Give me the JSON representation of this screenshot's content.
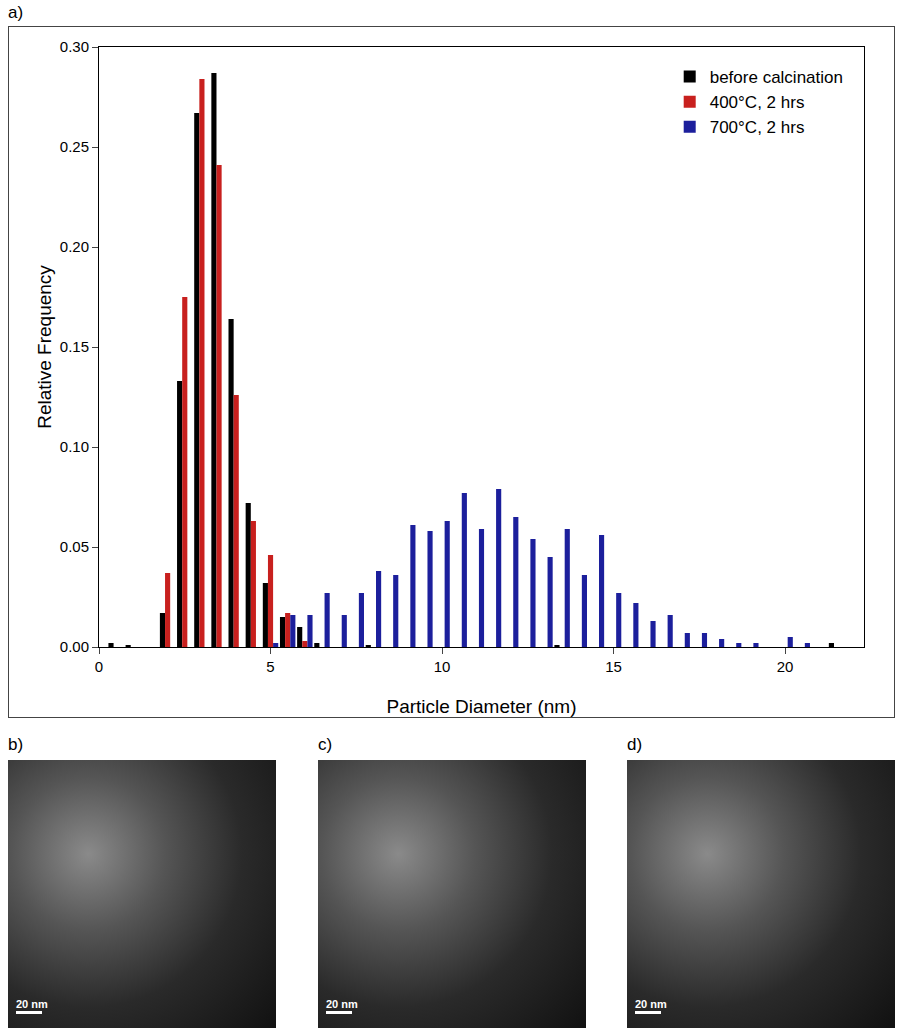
{
  "chart_data": {
    "type": "histogram",
    "x_label": "Particle Diameter (nm)",
    "y_label": "Relative Frequency",
    "bins": [
      0.25,
      0.75,
      1.25,
      1.75,
      2.25,
      2.75,
      3.25,
      3.75,
      4.25,
      4.75,
      5.25,
      5.75,
      6.25,
      6.75,
      7.25,
      7.75,
      8.25,
      8.75,
      9.25,
      9.75,
      10.25,
      10.75,
      11.25,
      11.75,
      12.25,
      12.75,
      13.25,
      13.75,
      14.25,
      14.75,
      15.25,
      15.75,
      16.25,
      16.75,
      17.25,
      17.75,
      18.25,
      18.75,
      19.25,
      19.75,
      20.25,
      20.75,
      21.25,
      21.75
    ],
    "series": [
      {
        "name": "before calcination",
        "color": "#000000",
        "values": [
          0.002,
          0.001,
          0,
          0.017,
          0.133,
          0.267,
          0.287,
          0.164,
          0.072,
          0.032,
          0.015,
          0.01,
          0.002,
          0,
          0,
          0.001,
          0,
          0,
          0,
          0,
          0,
          0,
          0,
          0,
          0,
          0,
          0.001,
          0,
          0,
          0,
          0,
          0,
          0,
          0,
          0,
          0,
          0,
          0,
          0,
          0,
          0,
          0,
          0.002
        ]
      },
      {
        "name": "400°C, 2 hrs",
        "color": "#c8201e",
        "values": [
          0,
          0,
          0,
          0.037,
          0.175,
          0.284,
          0.241,
          0.126,
          0.063,
          0.046,
          0.017,
          0.003,
          0,
          0,
          0,
          0,
          0,
          0,
          0,
          0,
          0,
          0,
          0,
          0,
          0,
          0,
          0,
          0,
          0,
          0,
          0,
          0,
          0,
          0,
          0,
          0,
          0,
          0,
          0,
          0,
          0,
          0,
          0
        ]
      },
      {
        "name": "700°C, 2 hrs",
        "color": "#1c1f9c",
        "values": [
          0,
          0,
          0,
          0,
          0,
          0,
          0,
          0,
          0,
          0.002,
          0.016,
          0.016,
          0.027,
          0.016,
          0.027,
          0.038,
          0.036,
          0.061,
          0.058,
          0.063,
          0.077,
          0.059,
          0.079,
          0.065,
          0.054,
          0.045,
          0.059,
          0.036,
          0.056,
          0.027,
          0.022,
          0.013,
          0.016,
          0.007,
          0.007,
          0.004,
          0.002,
          0.002,
          0,
          0.005,
          0.002,
          0,
          0
        ]
      }
    ],
    "xlim": [
      0,
      22.3
    ],
    "xticks": [
      0,
      5,
      10,
      15,
      20
    ],
    "ylim": [
      0,
      0.3
    ],
    "yticks": [
      {
        "value": 0,
        "label": "0.00"
      },
      {
        "value": 0.05,
        "label": "0.05"
      },
      {
        "value": 0.1,
        "label": "0.10"
      },
      {
        "value": 0.15,
        "label": "0.15"
      },
      {
        "value": 0.2,
        "label": "0.20"
      },
      {
        "value": 0.25,
        "label": "0.25"
      },
      {
        "value": 0.3,
        "label": "0.30"
      }
    ],
    "grid": false,
    "legend": "top right"
  },
  "panels": [
    {
      "label": "a)"
    },
    {
      "label": "b)",
      "scale_bar": "20 nm"
    },
    {
      "label": "c)",
      "scale_bar": "20 nm"
    },
    {
      "label": "d)",
      "scale_bar": "20 nm"
    }
  ]
}
